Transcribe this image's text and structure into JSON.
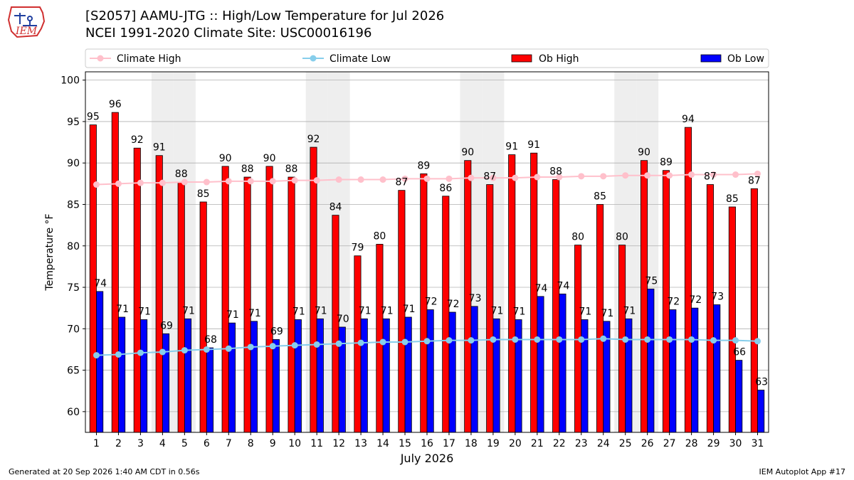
{
  "header": {
    "title_line1": "[S2057] AAMU-JTG :: High/Low Temperature for Jul 2026",
    "title_line2": "NCEI 1991-2020 Climate Site: USC00016196",
    "logo_text": "IEM"
  },
  "footer": {
    "generated": "Generated at 20 Sep 2026 1:40 AM CDT in 0.56s",
    "app": "IEM Autoplot App #17"
  },
  "colors": {
    "ob_high": "#ff0000",
    "ob_low": "#0000ff",
    "climate_high": "#ffc0cb",
    "climate_low": "#87ceeb",
    "weekend_band": "#eeeeee"
  },
  "chart_data": {
    "type": "bar",
    "xlabel": "July 2026",
    "ylabel": "Temperature °F",
    "ylim": [
      57.5,
      101
    ],
    "yticks": [
      60,
      65,
      70,
      75,
      80,
      85,
      90,
      95,
      100
    ],
    "grid": true,
    "legend": {
      "placement": "top",
      "entries": [
        "Climate High",
        "Climate Low",
        "Ob High",
        "Ob Low"
      ]
    },
    "categories": [
      "1",
      "2",
      "3",
      "4",
      "5",
      "6",
      "7",
      "8",
      "9",
      "10",
      "11",
      "12",
      "13",
      "14",
      "15",
      "16",
      "17",
      "18",
      "19",
      "20",
      "21",
      "22",
      "23",
      "24",
      "25",
      "26",
      "27",
      "28",
      "29",
      "30",
      "31"
    ],
    "shaded_days": [
      4,
      5,
      11,
      12,
      18,
      19,
      25,
      26
    ],
    "series": [
      {
        "name": "Ob High",
        "type": "bar",
        "values": [
          95,
          96,
          92,
          91,
          88,
          85,
          90,
          88,
          90,
          88,
          92,
          84,
          79,
          80,
          87,
          89,
          86,
          90,
          87,
          91,
          91,
          88,
          80,
          85,
          80,
          90,
          89,
          94,
          87,
          85,
          87
        ],
        "bar_tops": [
          94.6,
          96.1,
          91.8,
          90.9,
          87.7,
          85.3,
          89.6,
          88.3,
          89.6,
          88.3,
          91.9,
          83.7,
          78.8,
          80.2,
          86.7,
          88.7,
          86.0,
          90.3,
          87.4,
          91.0,
          91.2,
          88.0,
          80.1,
          85.0,
          80.1,
          90.3,
          89.1,
          94.3,
          87.4,
          84.7,
          86.9
        ]
      },
      {
        "name": "Ob Low",
        "type": "bar",
        "values": [
          74,
          71,
          71,
          69,
          71,
          68,
          71,
          71,
          69,
          71,
          71,
          70,
          71,
          71,
          71,
          72,
          72,
          73,
          71,
          71,
          74,
          74,
          71,
          71,
          71,
          75,
          72,
          72,
          73,
          66,
          63
        ],
        "bar_tops": [
          74.5,
          71.4,
          71.1,
          69.4,
          71.2,
          67.7,
          70.7,
          70.9,
          68.7,
          71.1,
          71.2,
          70.2,
          71.2,
          71.2,
          71.4,
          72.3,
          72.0,
          72.7,
          71.2,
          71.1,
          73.9,
          74.2,
          71.1,
          70.9,
          71.2,
          74.8,
          72.3,
          72.5,
          72.9,
          66.2,
          62.6
        ]
      },
      {
        "name": "Climate High",
        "type": "line",
        "values": [
          87.4,
          87.5,
          87.6,
          87.6,
          87.7,
          87.7,
          87.8,
          87.8,
          87.8,
          87.9,
          87.9,
          88.0,
          88.0,
          88.0,
          88.1,
          88.1,
          88.1,
          88.2,
          88.2,
          88.2,
          88.3,
          88.3,
          88.4,
          88.4,
          88.5,
          88.5,
          88.5,
          88.6,
          88.6,
          88.6,
          88.7
        ]
      },
      {
        "name": "Climate Low",
        "type": "line",
        "values": [
          66.8,
          66.9,
          67.1,
          67.2,
          67.4,
          67.5,
          67.6,
          67.8,
          67.9,
          68.0,
          68.1,
          68.2,
          68.3,
          68.4,
          68.4,
          68.5,
          68.6,
          68.6,
          68.7,
          68.7,
          68.7,
          68.7,
          68.7,
          68.8,
          68.7,
          68.7,
          68.7,
          68.7,
          68.6,
          68.6,
          68.5
        ]
      }
    ]
  }
}
